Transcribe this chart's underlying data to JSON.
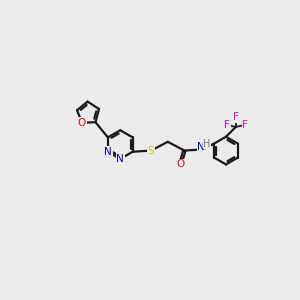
{
  "background_color": "#ebebeb",
  "bond_color": "#1a1a1a",
  "atom_colors": {
    "O": "#ff0000",
    "N": "#0000cc",
    "S": "#cccc00",
    "F": "#dd00dd",
    "H": "#777777",
    "C": "#1a1a1a"
  },
  "figsize": [
    3.0,
    3.0
  ],
  "dpi": 100,
  "xlim": [
    0,
    10
  ],
  "ylim": [
    0,
    10
  ]
}
